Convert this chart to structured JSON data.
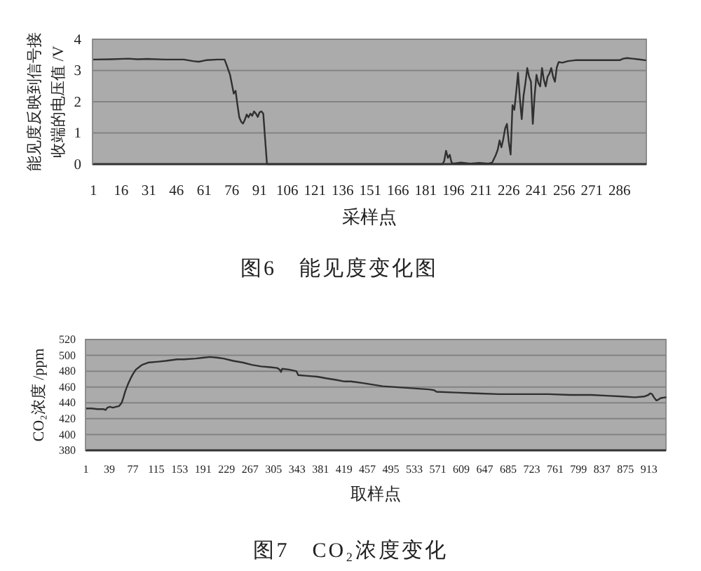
{
  "chart_data": [
    {
      "type": "line",
      "title": "图6　能见度变化图",
      "xlabel": "采样点",
      "ylabel": "能见度反映到信号接收端的电压值 /V",
      "color": "#303030",
      "grid": "y",
      "x": [
        1,
        10,
        20,
        25,
        30,
        40,
        50,
        55,
        58,
        62,
        68,
        72,
        73,
        75,
        77,
        78,
        79,
        80,
        81,
        82,
        83,
        84,
        85,
        86,
        87,
        88,
        89,
        90,
        91,
        92,
        93,
        94,
        95,
        100,
        150,
        190,
        191,
        192,
        193,
        194,
        195,
        196,
        200,
        205,
        210,
        215,
        217,
        219,
        220,
        221,
        222,
        223,
        224,
        225,
        226,
        227,
        228,
        229,
        230,
        231,
        232,
        233,
        234,
        235,
        236,
        237,
        238,
        239,
        240,
        241,
        242,
        243,
        244,
        245,
        246,
        247,
        248,
        249,
        250,
        251,
        252,
        253,
        255,
        258,
        262,
        270,
        280,
        286,
        288,
        290,
        293,
        296,
        300
      ],
      "values": [
        3.35,
        3.36,
        3.38,
        3.36,
        3.37,
        3.35,
        3.35,
        3.3,
        3.28,
        3.33,
        3.35,
        3.35,
        3.2,
        2.86,
        2.26,
        2.35,
        1.9,
        1.5,
        1.36,
        1.3,
        1.42,
        1.59,
        1.5,
        1.62,
        1.55,
        1.69,
        1.62,
        1.51,
        1.66,
        1.69,
        1.62,
        0.8,
        0,
        0,
        0,
        0,
        0.1,
        0.43,
        0.2,
        0.3,
        0.05,
        0.02,
        0.05,
        0.02,
        0.04,
        0.02,
        0.05,
        0.3,
        0.46,
        0.76,
        0.54,
        0.8,
        1.14,
        1.29,
        0.7,
        0.31,
        1.89,
        1.74,
        2.3,
        2.93,
        2.1,
        1.44,
        2.19,
        2.6,
        3.08,
        2.8,
        2.64,
        1.29,
        2.2,
        2.86,
        2.6,
        2.49,
        3.08,
        2.7,
        2.49,
        2.8,
        2.9,
        3.08,
        2.8,
        2.64,
        3.1,
        3.27,
        3.25,
        3.3,
        3.33,
        3.33,
        3.33,
        3.33,
        3.38,
        3.4,
        3.38,
        3.36,
        3.33
      ],
      "xlim": [
        0.5,
        300.5
      ],
      "xticks": [
        1,
        16,
        31,
        46,
        61,
        76,
        91,
        106,
        121,
        136,
        151,
        166,
        181,
        196,
        211,
        226,
        241,
        256,
        271,
        286
      ],
      "ylim": [
        0,
        4
      ],
      "yticks": [
        0,
        1,
        2,
        3,
        4
      ]
    },
    {
      "type": "line",
      "title": "图7　CO₂浓度变化",
      "xlabel": "取样点",
      "ylabel": "CO₂浓度 /ppm",
      "color": "#303030",
      "grid": "y",
      "x": [
        1,
        10,
        20,
        30,
        33,
        36,
        40,
        45,
        50,
        55,
        59,
        62,
        65,
        69,
        73,
        77,
        82,
        87,
        92,
        103,
        118,
        130,
        149,
        160,
        179,
        190,
        202,
        215,
        224,
        240,
        255,
        270,
        285,
        300,
        311,
        315,
        317,
        319,
        330,
        342,
        345,
        360,
        376,
        390,
        406,
        420,
        430,
        450,
        482,
        520,
        557,
        565,
        569,
        600,
        633,
        670,
        709,
        750,
        785,
        820,
        845,
        870,
        890,
        905,
        912,
        915,
        918,
        921,
        925,
        928,
        932,
        940
      ],
      "values": [
        433,
        433,
        432,
        432,
        431,
        434,
        435,
        434,
        435,
        436,
        440,
        447,
        455,
        463,
        470,
        476,
        482,
        485,
        488,
        491,
        492,
        493,
        495,
        495,
        496,
        497,
        498,
        497,
        496,
        493,
        491,
        488,
        486,
        485,
        484,
        482,
        479,
        483,
        482,
        480,
        475,
        474,
        473,
        471,
        469,
        467,
        467,
        465,
        461,
        459,
        457,
        456,
        454,
        453,
        452,
        451,
        451,
        451,
        450,
        450,
        449,
        448,
        447,
        448,
        450,
        452,
        451,
        447,
        443,
        444,
        446,
        447
      ],
      "xlim": [
        0.5,
        940.5
      ],
      "xticks": [
        1,
        39,
        77,
        115,
        153,
        191,
        229,
        267,
        305,
        343,
        381,
        419,
        457,
        495,
        533,
        571,
        609,
        647,
        685,
        723,
        761,
        799,
        837,
        875,
        913
      ],
      "ylim": [
        380,
        520
      ],
      "yticks": [
        380,
        400,
        420,
        440,
        460,
        480,
        500,
        520
      ]
    }
  ]
}
